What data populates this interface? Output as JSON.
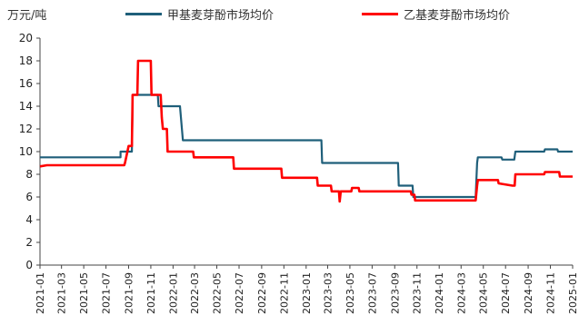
{
  "chart_data": {
    "type": "line",
    "unit": "万元/吨",
    "ylim": [
      0,
      20
    ],
    "yticks": [
      0,
      2,
      4,
      6,
      8,
      10,
      12,
      14,
      16,
      18,
      20
    ],
    "xlim": [
      "2021-01",
      "2025-01"
    ],
    "xticks": [
      "2021-01",
      "2021-03",
      "2021-05",
      "2021-07",
      "2021-09",
      "2021-11",
      "2022-01",
      "2022-03",
      "2022-05",
      "2022-07",
      "2022-09",
      "2022-11",
      "2023-01",
      "2023-03",
      "2023-05",
      "2023-07",
      "2023-09",
      "2023-11",
      "2024-01",
      "2024-03",
      "2024-05",
      "2024-07",
      "2024-09",
      "2024-11",
      "2025-01"
    ],
    "legend_position": "top",
    "grid": false,
    "series": [
      {
        "name": "甲基麦芽酚市场均价",
        "color": "#1f5f7a",
        "points": [
          [
            "2021-01-01",
            9.5
          ],
          [
            "2021-08-10",
            9.5
          ],
          [
            "2021-08-10",
            10.0
          ],
          [
            "2021-09-10",
            10.0
          ],
          [
            "2021-09-12",
            15.0
          ],
          [
            "2021-11-20",
            15.0
          ],
          [
            "2021-11-22",
            14.0
          ],
          [
            "2022-01-20",
            14.0
          ],
          [
            "2022-01-28",
            11.0
          ],
          [
            "2023-02-12",
            11.0
          ],
          [
            "2023-02-14",
            9.0
          ],
          [
            "2023-09-10",
            9.0
          ],
          [
            "2023-09-12",
            7.0
          ],
          [
            "2023-10-20",
            7.0
          ],
          [
            "2023-10-22",
            6.0
          ],
          [
            "2024-04-10",
            6.0
          ],
          [
            "2024-04-14",
            9.0
          ],
          [
            "2024-04-16",
            9.5
          ],
          [
            "2024-06-20",
            9.5
          ],
          [
            "2024-06-22",
            9.3
          ],
          [
            "2024-07-25",
            9.3
          ],
          [
            "2024-07-28",
            10.0
          ],
          [
            "2024-10-15",
            10.0
          ],
          [
            "2024-10-17",
            10.2
          ],
          [
            "2024-11-20",
            10.2
          ],
          [
            "2024-11-22",
            10.0
          ],
          [
            "2025-01-01",
            10.0
          ]
        ]
      },
      {
        "name": "乙基麦芽酚市场均价",
        "color": "#ff0000",
        "points": [
          [
            "2021-01-01",
            8.7
          ],
          [
            "2021-01-20",
            8.8
          ],
          [
            "2021-08-20",
            8.8
          ],
          [
            "2021-08-22",
            9.0
          ],
          [
            "2021-09-01",
            10.5
          ],
          [
            "2021-09-10",
            10.5
          ],
          [
            "2021-09-12",
            15.0
          ],
          [
            "2021-09-25",
            15.0
          ],
          [
            "2021-09-27",
            18.0
          ],
          [
            "2021-11-01",
            18.0
          ],
          [
            "2021-11-03",
            15.0
          ],
          [
            "2021-11-28",
            15.0
          ],
          [
            "2021-12-01",
            13.0
          ],
          [
            "2021-12-04",
            12.0
          ],
          [
            "2021-12-15",
            12.0
          ],
          [
            "2021-12-17",
            10.0
          ],
          [
            "2022-02-25",
            10.0
          ],
          [
            "2022-02-27",
            9.5
          ],
          [
            "2022-06-15",
            9.5
          ],
          [
            "2022-06-17",
            8.5
          ],
          [
            "2022-10-25",
            8.5
          ],
          [
            "2022-10-27",
            7.7
          ],
          [
            "2023-01-31",
            7.7
          ],
          [
            "2023-02-02",
            7.0
          ],
          [
            "2023-03-10",
            7.0
          ],
          [
            "2023-03-12",
            6.5
          ],
          [
            "2023-04-01",
            6.5
          ],
          [
            "2023-04-03",
            5.6
          ],
          [
            "2023-04-06",
            6.5
          ],
          [
            "2023-05-05",
            6.5
          ],
          [
            "2023-05-07",
            6.8
          ],
          [
            "2023-05-25",
            6.8
          ],
          [
            "2023-05-27",
            6.5
          ],
          [
            "2023-10-15",
            6.5
          ],
          [
            "2023-10-17",
            6.2
          ],
          [
            "2023-10-25",
            6.2
          ],
          [
            "2023-10-27",
            5.7
          ],
          [
            "2024-04-10",
            5.7
          ],
          [
            "2024-04-14",
            7.0
          ],
          [
            "2024-04-16",
            7.5
          ],
          [
            "2024-06-10",
            7.5
          ],
          [
            "2024-06-12",
            7.2
          ],
          [
            "2024-07-20",
            7.0
          ],
          [
            "2024-07-26",
            7.0
          ],
          [
            "2024-07-28",
            8.0
          ],
          [
            "2024-10-15",
            8.0
          ],
          [
            "2024-10-17",
            8.2
          ],
          [
            "2024-11-25",
            8.2
          ],
          [
            "2024-11-27",
            7.8
          ],
          [
            "2025-01-01",
            7.8
          ]
        ]
      }
    ]
  }
}
